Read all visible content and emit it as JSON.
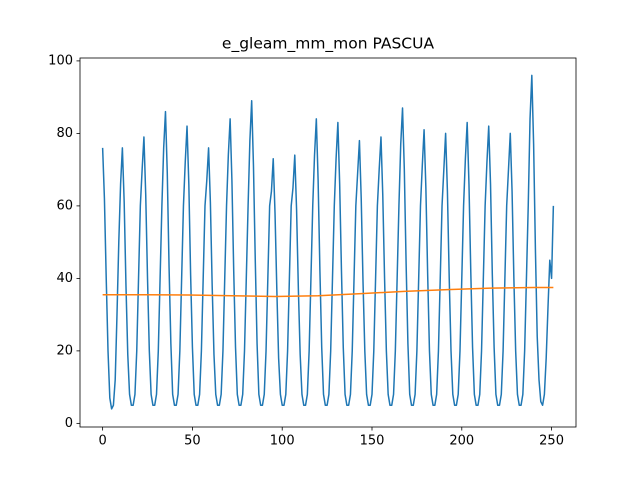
{
  "chart_data": {
    "type": "line",
    "title": "e_gleam_mm_mon PASCUA",
    "xlim": [
      -12.6,
      263.6
    ],
    "xticks": [
      0,
      50,
      100,
      150,
      200,
      250
    ],
    "ylim": [
      -1.0,
      100.8
    ],
    "yticks": [
      0,
      20,
      40,
      60,
      80,
      100
    ],
    "grid": false,
    "series": [
      {
        "color": "#1f77b4",
        "x": [
          0,
          1,
          2,
          3,
          4,
          5,
          6,
          7,
          8,
          9,
          10,
          11,
          12,
          13,
          14,
          15,
          16,
          17,
          18,
          19,
          20,
          21,
          22,
          23,
          24,
          25,
          26,
          27,
          28,
          29,
          30,
          31,
          32,
          33,
          34,
          35,
          36,
          37,
          38,
          39,
          40,
          41,
          42,
          43,
          44,
          45,
          46,
          47,
          48,
          49,
          50,
          51,
          52,
          53,
          54,
          55,
          56,
          57,
          58,
          59,
          60,
          61,
          62,
          63,
          64,
          65,
          66,
          67,
          68,
          69,
          70,
          71,
          72,
          73,
          74,
          75,
          76,
          77,
          78,
          79,
          80,
          81,
          82,
          83,
          84,
          85,
          86,
          87,
          88,
          89,
          90,
          91,
          92,
          93,
          94,
          95,
          96,
          97,
          98,
          99,
          100,
          101,
          102,
          103,
          104,
          105,
          106,
          107,
          108,
          109,
          110,
          111,
          112,
          113,
          114,
          115,
          116,
          117,
          118,
          119,
          120,
          121,
          122,
          123,
          124,
          125,
          126,
          127,
          128,
          129,
          130,
          131,
          132,
          133,
          134,
          135,
          136,
          137,
          138,
          139,
          140,
          141,
          142,
          143,
          144,
          145,
          146,
          147,
          148,
          149,
          150,
          151,
          152,
          153,
          154,
          155,
          156,
          157,
          158,
          159,
          160,
          161,
          162,
          163,
          164,
          165,
          166,
          167,
          168,
          169,
          170,
          171,
          172,
          173,
          174,
          175,
          176,
          177,
          178,
          179,
          180,
          181,
          182,
          183,
          184,
          185,
          186,
          187,
          188,
          189,
          190,
          191,
          192,
          193,
          194,
          195,
          196,
          197,
          198,
          199,
          200,
          201,
          202,
          203,
          204,
          205,
          206,
          207,
          208,
          209,
          210,
          211,
          212,
          213,
          214,
          215,
          216,
          217,
          218,
          219,
          220,
          221,
          222,
          223,
          224,
          225,
          226,
          227,
          228,
          229,
          230,
          231,
          232,
          233,
          234,
          235,
          236,
          237,
          238,
          239,
          240,
          241,
          242,
          243,
          244,
          245,
          246,
          247,
          248,
          249,
          250,
          251
        ],
        "values": [
          76,
          62,
          40,
          20,
          7,
          4,
          5,
          12,
          30,
          50,
          66,
          76,
          61,
          38,
          19,
          8,
          5,
          5,
          8,
          20,
          40,
          60,
          70,
          79,
          63,
          40,
          20,
          8,
          5,
          5,
          8,
          20,
          40,
          60,
          76,
          86,
          69,
          43,
          22,
          8,
          5,
          5,
          8,
          20,
          40,
          60,
          72,
          82,
          66,
          41,
          21,
          8,
          5,
          5,
          8,
          20,
          40,
          60,
          67,
          76,
          61,
          38,
          19,
          8,
          5,
          5,
          8,
          20,
          40,
          60,
          74,
          84,
          67,
          42,
          21,
          8,
          5,
          5,
          8,
          20,
          40,
          60,
          78,
          89,
          71,
          45,
          22,
          8,
          5,
          5,
          8,
          20,
          40,
          60,
          64,
          73,
          58,
          37,
          18,
          8,
          5,
          5,
          8,
          20,
          40,
          60,
          65,
          74,
          59,
          37,
          19,
          8,
          5,
          5,
          8,
          20,
          40,
          60,
          74,
          84,
          67,
          42,
          21,
          8,
          5,
          5,
          8,
          20,
          40,
          60,
          73,
          83,
          66,
          42,
          21,
          8,
          5,
          5,
          8,
          20,
          40,
          60,
          69,
          78,
          62,
          39,
          20,
          8,
          5,
          5,
          8,
          20,
          40,
          60,
          70,
          79,
          63,
          40,
          20,
          8,
          5,
          5,
          8,
          20,
          40,
          60,
          77,
          87,
          70,
          44,
          22,
          8,
          5,
          5,
          8,
          20,
          40,
          60,
          71,
          81,
          65,
          41,
          20,
          8,
          5,
          5,
          8,
          20,
          40,
          60,
          70,
          80,
          64,
          40,
          20,
          8,
          5,
          5,
          8,
          20,
          40,
          60,
          73,
          83,
          66,
          42,
          21,
          8,
          5,
          5,
          8,
          20,
          40,
          60,
          72,
          82,
          66,
          41,
          21,
          8,
          5,
          5,
          8,
          20,
          40,
          60,
          70,
          80,
          64,
          40,
          20,
          8,
          5,
          5,
          8,
          20,
          40,
          60,
          84,
          96,
          77,
          48,
          24,
          12,
          6,
          5,
          8,
          18,
          32,
          45,
          40,
          60
        ]
      },
      {
        "color": "#ff7f0e",
        "x": [
          0,
          24,
          48,
          72,
          96,
          120,
          144,
          168,
          192,
          216,
          240,
          251
        ],
        "values": [
          35.5,
          35.5,
          35.4,
          35.2,
          35.0,
          35.2,
          35.8,
          36.4,
          36.9,
          37.3,
          37.5,
          37.5
        ]
      }
    ]
  }
}
